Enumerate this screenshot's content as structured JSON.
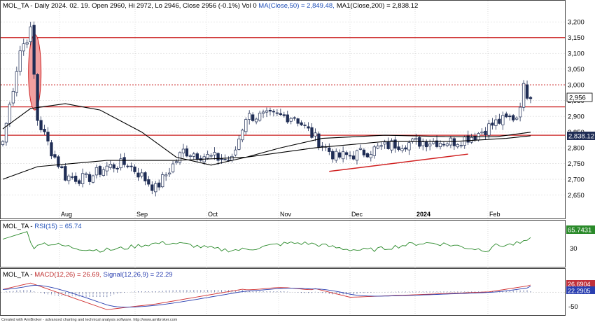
{
  "price_panel": {
    "title_prefix": "MOL_TA - Daily 2024. 02. 19. Open 2960, Hi 2972, Lo 2946, Close 2956 (-0.1%) Vol 0 ",
    "ma50_label": "MA(Close,50) = 2,849.48,",
    "ma200_label": "MA1(Close,200) = 2,838.12",
    "y_ticks": [
      "3,200",
      "3,150",
      "3,100",
      "3,050",
      "3,000",
      "2,950",
      "2,900",
      "2,850",
      "2,800",
      "2,750",
      "2,700",
      "2,650"
    ],
    "y_tick_values": [
      3200,
      3150,
      3100,
      3050,
      3000,
      2950,
      2900,
      2850,
      2800,
      2750,
      2700,
      2650
    ],
    "ylim": [
      2620,
      3225
    ],
    "last_price_badge": "2,956",
    "ma200_badge": "2,838.12"
  },
  "x_axis": {
    "labels": [
      "Aug",
      "Sep",
      "Oct",
      "Nov",
      "Dec",
      "2024",
      "Feb"
    ]
  },
  "rsi_panel": {
    "title_prefix": "MOL_TA - ",
    "title_value": "RSI(15) = 65.74",
    "y_ticks": [
      "30"
    ],
    "badge": "65.7431"
  },
  "macd_panel": {
    "title_prefix": "MOL_TA - ",
    "macd_label": "MACD(12,26) = 26.69,",
    "signal_label": "Signal(12,26,9) = 22.29",
    "y_ticks": [
      "-50"
    ],
    "badge_macd": "26.6904",
    "badge_signal": "22.2905"
  },
  "footer": {
    "credit": "Created with AmiBroker - advanced charting and technical analysis software. http://www.amibroker.com"
  },
  "chart_data": {
    "type": "candlestick",
    "title": "MOL_TA - Daily 2024. 02. 19.",
    "ylim": [
      2620,
      3225
    ],
    "anchors": [
      {
        "i": 0,
        "v": 2820
      },
      {
        "i": 5,
        "v": 3110
      },
      {
        "i": 8,
        "v": 3170
      },
      {
        "i": 10,
        "v": 2890
      },
      {
        "i": 14,
        "v": 2790
      },
      {
        "i": 18,
        "v": 2710
      },
      {
        "i": 24,
        "v": 2700
      },
      {
        "i": 30,
        "v": 2740
      },
      {
        "i": 36,
        "v": 2750
      },
      {
        "i": 44,
        "v": 2670
      },
      {
        "i": 52,
        "v": 2790
      },
      {
        "i": 60,
        "v": 2770
      },
      {
        "i": 66,
        "v": 2760
      },
      {
        "i": 70,
        "v": 2900
      },
      {
        "i": 78,
        "v": 2900
      },
      {
        "i": 84,
        "v": 2900
      },
      {
        "i": 90,
        "v": 2830
      },
      {
        "i": 96,
        "v": 2770
      },
      {
        "i": 102,
        "v": 2780
      },
      {
        "i": 112,
        "v": 2810
      },
      {
        "i": 122,
        "v": 2820
      },
      {
        "i": 130,
        "v": 2820
      },
      {
        "i": 136,
        "v": 2840
      },
      {
        "i": 142,
        "v": 2880
      },
      {
        "i": 148,
        "v": 2900
      },
      {
        "i": 150,
        "v": 2990
      },
      {
        "i": 152,
        "v": 2956
      }
    ],
    "horizontal_levels": [
      3150,
      3000,
      2930,
      2840
    ],
    "trendline": {
      "from": {
        "i": 94,
        "v": 2725
      },
      "to": {
        "i": 134,
        "v": 2780
      }
    },
    "highlight_ellipse": {
      "i": 8,
      "v_top": 3160,
      "v_bottom": 2920
    },
    "ma50": [
      {
        "i": 0,
        "v": 2860
      },
      {
        "i": 8,
        "v": 2925
      },
      {
        "i": 18,
        "v": 2940
      },
      {
        "i": 28,
        "v": 2920
      },
      {
        "i": 40,
        "v": 2850
      },
      {
        "i": 50,
        "v": 2770
      },
      {
        "i": 60,
        "v": 2745
      },
      {
        "i": 70,
        "v": 2770
      },
      {
        "i": 80,
        "v": 2800
      },
      {
        "i": 92,
        "v": 2830
      },
      {
        "i": 110,
        "v": 2840
      },
      {
        "i": 130,
        "v": 2835
      },
      {
        "i": 142,
        "v": 2835
      },
      {
        "i": 152,
        "v": 2849.48
      }
    ],
    "ma200": [
      {
        "i": 0,
        "v": 2700
      },
      {
        "i": 10,
        "v": 2740
      },
      {
        "i": 30,
        "v": 2760
      },
      {
        "i": 50,
        "v": 2760
      },
      {
        "i": 70,
        "v": 2770
      },
      {
        "i": 90,
        "v": 2800
      },
      {
        "i": 110,
        "v": 2820
      },
      {
        "i": 130,
        "v": 2820
      },
      {
        "i": 145,
        "v": 2830
      },
      {
        "i": 152,
        "v": 2838.12
      }
    ],
    "rsi": {
      "ylim": [
        0,
        100
      ],
      "last": 65.74
    },
    "macd": {
      "ylim": [
        -80,
        50
      ],
      "macd_last": 26.69,
      "signal_last": 22.29
    }
  }
}
